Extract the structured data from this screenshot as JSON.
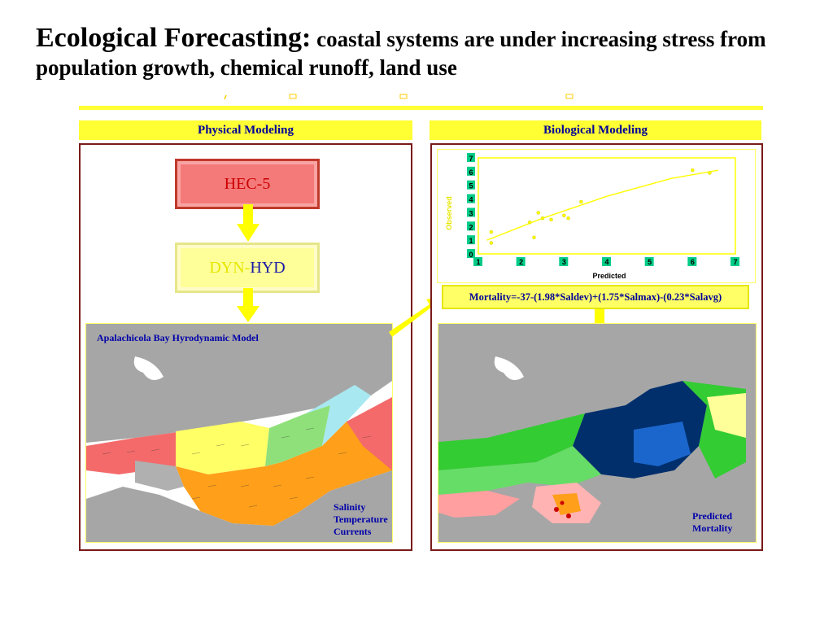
{
  "title": {
    "bold": "Ecological Forecasting:",
    "rest": " coastal systems are under increasing stress from population growth, chemical runoff, land use"
  },
  "physical": {
    "header": "Physical Modeling",
    "hec_label": "HEC-5",
    "dyn_part1": "DYN-",
    "dyn_part2": "HYD",
    "map_title": "Apalachicola Bay Hyrodynamic Model",
    "legend": [
      "Salinity",
      "Temperature",
      "Currents"
    ]
  },
  "biological": {
    "header": "Biological Modeling",
    "equation": "Mortality=-37-(1.98*Saldev)+(1.75*Salmax)-(0.23*Salavg)",
    "map_label_line1": "Predicted",
    "map_label_line2": "Mortality"
  },
  "chart_data": {
    "type": "scatter",
    "xlabel": "Predicted",
    "ylabel": "Observed",
    "xlim": [
      1,
      7
    ],
    "ylim": [
      0,
      7
    ],
    "x_ticks": [
      "1",
      "2",
      "3",
      "4",
      "5",
      "6",
      "7"
    ],
    "y_ticks": [
      "0",
      "1",
      "2",
      "3",
      "4",
      "5",
      "6",
      "7"
    ],
    "points": [
      [
        1.3,
        0.8
      ],
      [
        1.3,
        1.6
      ],
      [
        2.2,
        2.3
      ],
      [
        2.3,
        1.2
      ],
      [
        2.4,
        3.0
      ],
      [
        2.5,
        2.6
      ],
      [
        2.7,
        2.5
      ],
      [
        3.0,
        2.8
      ],
      [
        3.1,
        2.6
      ],
      [
        3.4,
        3.8
      ],
      [
        6.0,
        6.1
      ],
      [
        6.4,
        5.9
      ]
    ],
    "trend": [
      [
        1.2,
        1.0
      ],
      [
        2.5,
        2.6
      ],
      [
        4.0,
        4.2
      ],
      [
        5.5,
        5.5
      ],
      [
        6.6,
        6.1
      ]
    ],
    "colors": {
      "points": "#ffff00",
      "axis_labels": "#e6e600"
    }
  }
}
